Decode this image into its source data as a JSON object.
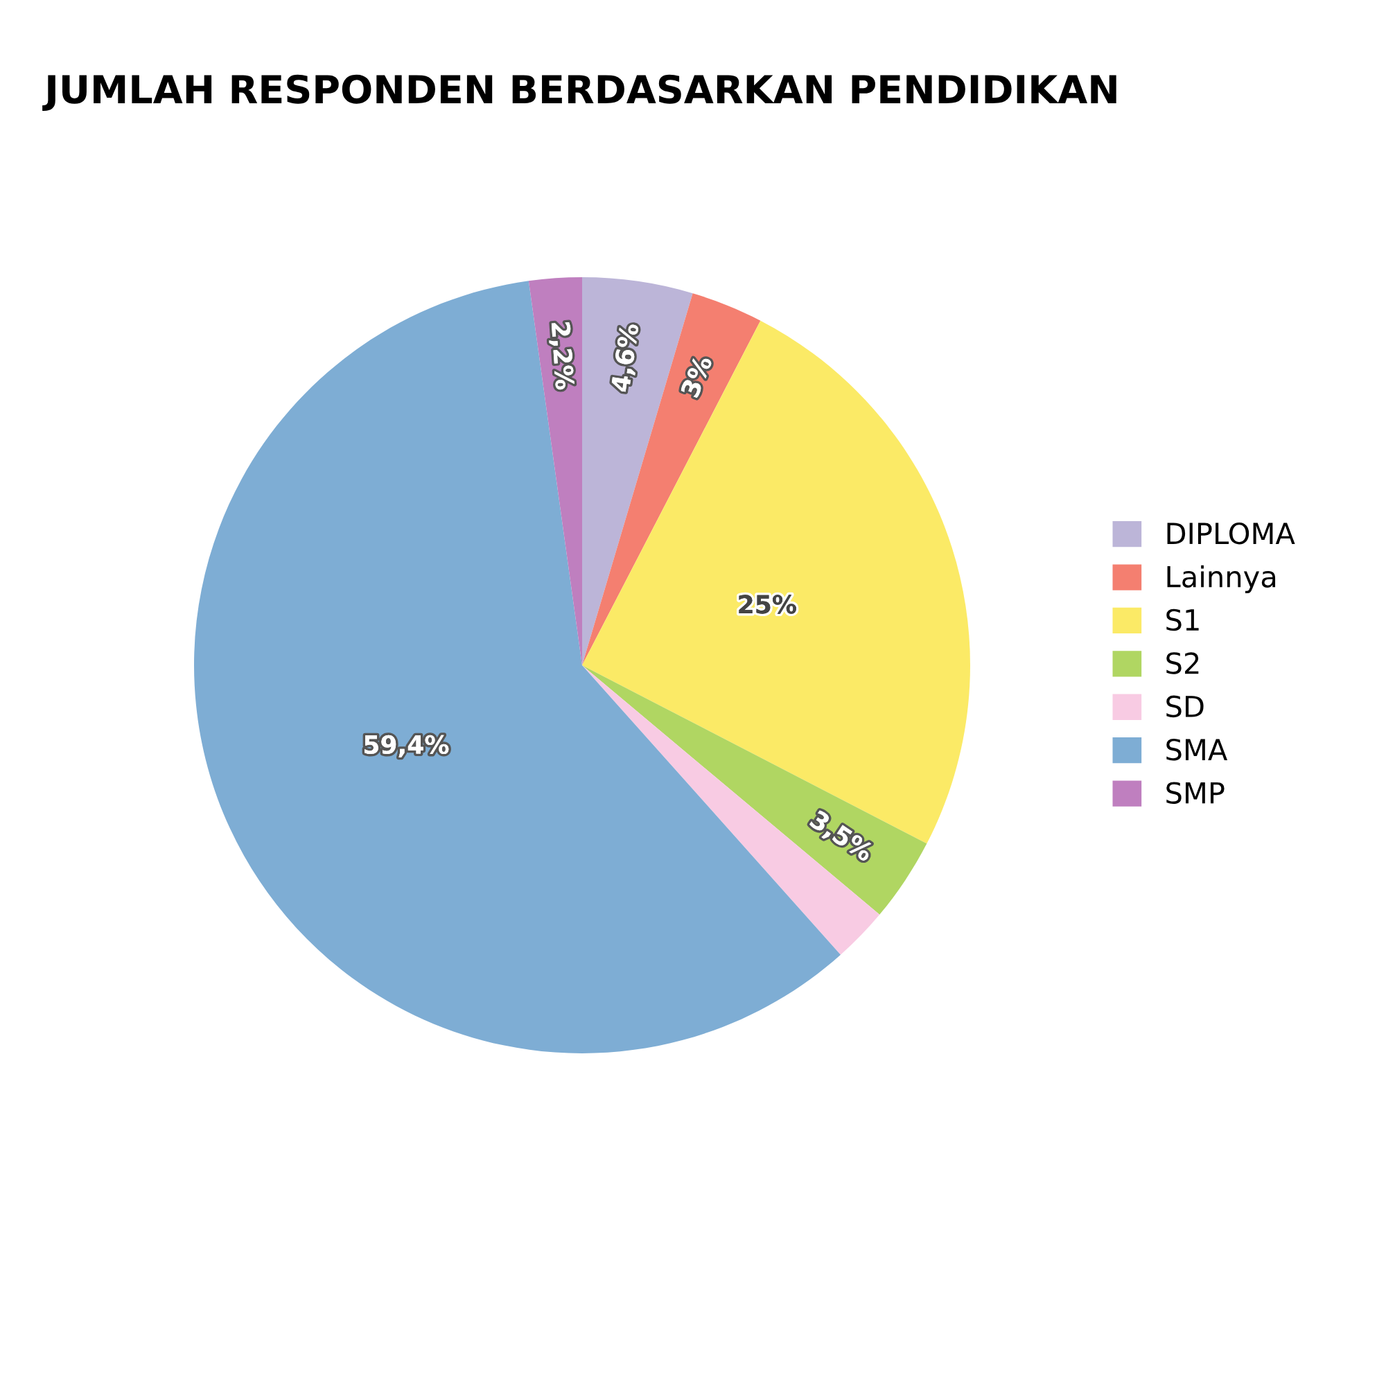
{
  "chart_data": {
    "type": "pie",
    "title": "JUMLAH RESPONDEN BERDASARKAN PENDIDIKAN",
    "categories": [
      "DIPLOMA",
      "Lainnya",
      "S1",
      "S2",
      "SD",
      "SMA",
      "SMP"
    ],
    "values": [
      4.6,
      3,
      25,
      3.5,
      2.3,
      59.4,
      2.2
    ],
    "value_labels": [
      "4,6%",
      "3%",
      "25%",
      "3,5%",
      null,
      "59,4%",
      "2,2%"
    ],
    "colors": [
      "#bcb5d8",
      "#f47f70",
      "#fbea66",
      "#b0d662",
      "#f8cbe3",
      "#7eadd4",
      "#bf7fbf"
    ],
    "legend": "right"
  }
}
